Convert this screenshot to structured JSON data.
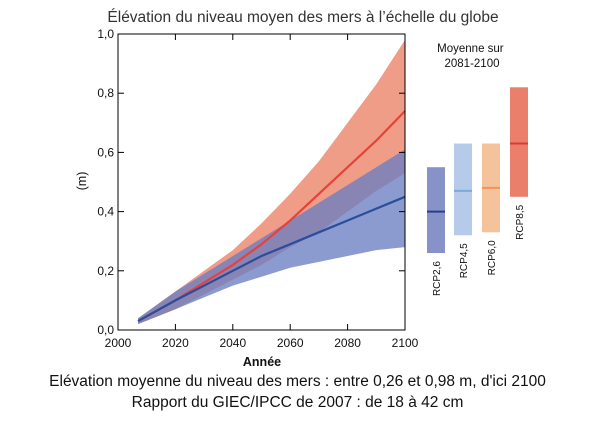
{
  "chart_data": {
    "type": "area",
    "title": "Élévation du niveau moyen des mers à l’échelle du globe",
    "xlabel": "Année",
    "ylabel": "(m)",
    "xlim": [
      2000,
      2100
    ],
    "ylim": [
      0.0,
      1.0
    ],
    "xticks": [
      2000,
      2020,
      2040,
      2060,
      2080,
      2100
    ],
    "yticks": [
      "0,0",
      "0,2",
      "0,4",
      "0,6",
      "0,8",
      "1,0"
    ],
    "x": [
      2007,
      2020,
      2030,
      2040,
      2050,
      2060,
      2070,
      2080,
      2090,
      2100
    ],
    "series": [
      {
        "name": "RCP8,5",
        "color": "#e8413c",
        "band_color": "#ec8266",
        "mean": [
          0.03,
          0.1,
          0.16,
          0.22,
          0.29,
          0.37,
          0.46,
          0.55,
          0.64,
          0.74
        ],
        "low": [
          0.02,
          0.07,
          0.12,
          0.17,
          0.22,
          0.28,
          0.33,
          0.4,
          0.47,
          0.53
        ],
        "high": [
          0.04,
          0.13,
          0.2,
          0.27,
          0.36,
          0.46,
          0.57,
          0.7,
          0.83,
          0.98
        ]
      },
      {
        "name": "RCP2,6",
        "color": "#2a4d9c",
        "band_color": "#6a7fc2",
        "mean": [
          0.03,
          0.1,
          0.15,
          0.2,
          0.25,
          0.29,
          0.33,
          0.37,
          0.41,
          0.45
        ],
        "low": [
          0.02,
          0.07,
          0.11,
          0.15,
          0.18,
          0.21,
          0.23,
          0.25,
          0.27,
          0.28
        ],
        "high": [
          0.04,
          0.13,
          0.19,
          0.25,
          0.31,
          0.37,
          0.43,
          0.49,
          0.55,
          0.61
        ]
      }
    ],
    "panel": {
      "title": "Moyenne sur 2081-2100",
      "bars": [
        {
          "name": "RCP2,6",
          "mean": 0.4,
          "low": 0.26,
          "high": 0.55,
          "fill": "#8792c9",
          "line": "#283f8f"
        },
        {
          "name": "RCP4,5",
          "mean": 0.47,
          "low": 0.32,
          "high": 0.63,
          "fill": "#b6cbe9",
          "line": "#7da9d8"
        },
        {
          "name": "RCP6,0",
          "mean": 0.48,
          "low": 0.33,
          "high": 0.63,
          "fill": "#f4c39c",
          "line": "#ee9558"
        },
        {
          "name": "RCP8,5",
          "mean": 0.63,
          "low": 0.45,
          "high": 0.82,
          "fill": "#ea806b",
          "line": "#dc3b32"
        }
      ]
    }
  },
  "caption": {
    "line1": "Elévation moyenne du niveau des mers : entre 0,26 et 0,98 m, d'ici 2100",
    "line2": "Rapport du GIEC/IPCC de 2007 : de 18 à 42 cm"
  }
}
